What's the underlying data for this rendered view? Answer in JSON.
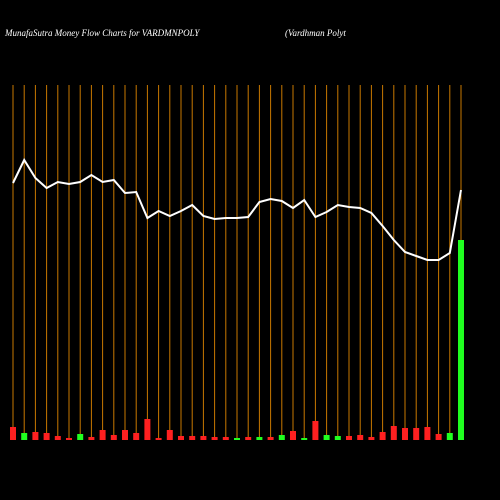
{
  "chart_data": {
    "type": "money-flow",
    "title": "MunafaSutra  Money Flow  Charts for VARDMNPOLY",
    "subtitle": "(Vardhman  Polyt",
    "price_color": "#ffffff",
    "grid_color": "#c87800",
    "ylim": [
      0,
      440
    ],
    "price": [
      257,
      280,
      262,
      252,
      258,
      256,
      258,
      265,
      258,
      260,
      247,
      248,
      222,
      229,
      224,
      229,
      235,
      224,
      221,
      222,
      222,
      223,
      238,
      241,
      239,
      232,
      240,
      223,
      228,
      235,
      233,
      232,
      227,
      214,
      200,
      188,
      184,
      180,
      180,
      187,
      250
    ],
    "series": [
      {
        "name": "Money flow",
        "values": [
          13,
          7,
          8,
          7,
          4,
          2,
          6,
          3,
          10,
          5,
          10,
          7,
          21,
          2,
          10,
          4,
          4,
          4,
          3,
          3,
          2,
          3,
          3,
          3,
          5,
          9,
          2,
          19,
          5,
          4,
          4,
          5,
          3,
          8,
          14,
          12,
          12,
          13,
          6,
          7,
          200
        ],
        "colors": [
          "#ff2020",
          "#20ff20",
          "#ff2020",
          "#ff2020",
          "#ff2020",
          "#ff2020",
          "#20ff20",
          "#ff2020",
          "#ff2020",
          "#ff2020",
          "#ff2020",
          "#ff2020",
          "#ff2020",
          "#ff2020",
          "#ff2020",
          "#ff2020",
          "#ff2020",
          "#ff2020",
          "#ff2020",
          "#ff2020",
          "#20ff20",
          "#ff2020",
          "#20ff20",
          "#ff2020",
          "#20ff20",
          "#ff2020",
          "#20ff20",
          "#ff2020",
          "#20ff20",
          "#20ff20",
          "#ff2020",
          "#ff2020",
          "#ff2020",
          "#ff2020",
          "#ff2020",
          "#ff2020",
          "#ff2020",
          "#ff2020",
          "#ff2020",
          "#20ff20",
          "#20ff20"
        ]
      }
    ]
  }
}
